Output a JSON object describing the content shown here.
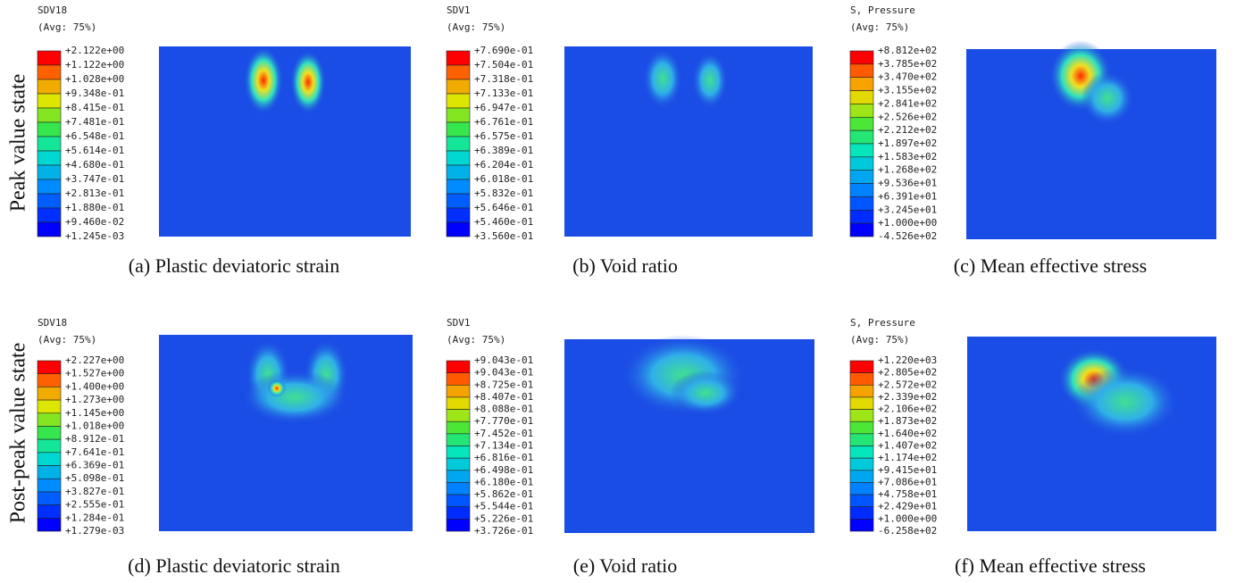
{
  "row_labels": [
    "Peak value state",
    "Post-peak value state"
  ],
  "panels": [
    {
      "variable": "SDV18",
      "average": "(Avg: 75%)",
      "caption": "(a) Plastic deviatoric strain",
      "legend": [
        "+2.122e+00",
        "+1.122e+00",
        "+1.028e+00",
        "+9.348e-01",
        "+8.415e-01",
        "+7.481e-01",
        "+6.548e-01",
        "+5.614e-01",
        "+4.680e-01",
        "+3.747e-01",
        "+2.813e-01",
        "+1.880e-01",
        "+9.460e-02",
        "+1.245e-03"
      ]
    },
    {
      "variable": "SDV1",
      "average": "(Avg: 75%)",
      "caption": "(b) Void ratio",
      "legend": [
        "+7.690e-01",
        "+7.504e-01",
        "+7.318e-01",
        "+7.133e-01",
        "+6.947e-01",
        "+6.761e-01",
        "+6.575e-01",
        "+6.389e-01",
        "+6.204e-01",
        "+6.018e-01",
        "+5.832e-01",
        "+5.646e-01",
        "+5.460e-01",
        "+3.560e-01"
      ]
    },
    {
      "variable": "S, Pressure",
      "average": "(Avg: 75%)",
      "caption": "(c) Mean effective stress",
      "legend": [
        "+8.812e+02",
        "+3.785e+02",
        "+3.470e+02",
        "+3.155e+02",
        "+2.841e+02",
        "+2.526e+02",
        "+2.212e+02",
        "+1.897e+02",
        "+1.583e+02",
        "+1.268e+02",
        "+9.536e+01",
        "+6.391e+01",
        "+3.245e+01",
        "+1.000e+00",
        "-4.526e+02"
      ]
    },
    {
      "variable": "SDV18",
      "average": "(Avg: 75%)",
      "caption": "(d) Plastic deviatoric strain",
      "legend": [
        "+2.227e+00",
        "+1.527e+00",
        "+1.400e+00",
        "+1.273e+00",
        "+1.145e+00",
        "+1.018e+00",
        "+8.912e-01",
        "+7.641e-01",
        "+6.369e-01",
        "+5.098e-01",
        "+3.827e-01",
        "+2.555e-01",
        "+1.284e-01",
        "+1.279e-03"
      ]
    },
    {
      "variable": "SDV1",
      "average": "(Avg: 75%)",
      "caption": "(e) Void ratio",
      "legend": [
        "+9.043e-01",
        "+9.043e-01",
        "+8.725e-01",
        "+8.407e-01",
        "+8.088e-01",
        "+7.770e-01",
        "+7.452e-01",
        "+7.134e-01",
        "+6.816e-01",
        "+6.498e-01",
        "+6.180e-01",
        "+5.862e-01",
        "+5.544e-01",
        "+5.226e-01",
        "+3.726e-01"
      ]
    },
    {
      "variable": "S, Pressure",
      "average": "(Avg: 75%)",
      "caption": "(f) Mean effective stress",
      "legend": [
        "+1.220e+03",
        "+2.805e+02",
        "+2.572e+02",
        "+2.339e+02",
        "+2.106e+02",
        "+1.873e+02",
        "+1.640e+02",
        "+1.407e+02",
        "+1.174e+02",
        "+9.415e+01",
        "+7.086e+01",
        "+4.758e+01",
        "+2.429e+01",
        "+1.000e+00",
        "-6.258e+02"
      ]
    }
  ]
}
